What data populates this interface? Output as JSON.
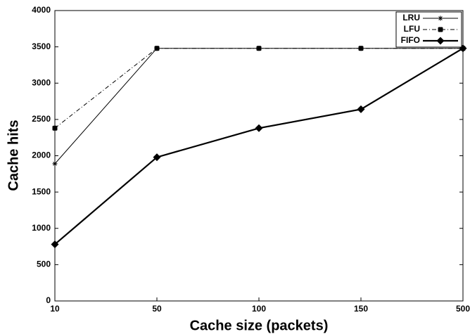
{
  "chart_data": {
    "type": "line",
    "x_label": "Cache size (packets)",
    "y_label": "Cache hits",
    "categories": [
      "10",
      "50",
      "100",
      "150",
      "500"
    ],
    "series": [
      {
        "name": "LRU",
        "color": "#000000",
        "dash": "solid",
        "marker": "asterisk",
        "values": [
          1890,
          3480,
          3480,
          3480,
          3480
        ]
      },
      {
        "name": "LFU",
        "color": "#000000",
        "dash": "dashdot",
        "marker": "square",
        "values": [
          2380,
          3480,
          3480,
          3480,
          3480
        ]
      },
      {
        "name": "FIFO",
        "color": "#000000",
        "dash": "solid-thick",
        "marker": "diamond",
        "values": [
          780,
          1980,
          2380,
          2640,
          3480
        ]
      }
    ],
    "ylim": [
      0,
      4000
    ],
    "yticks": [
      0,
      500,
      1000,
      1500,
      2000,
      2500,
      3000,
      3500,
      4000
    ],
    "grid": false,
    "legend": "top-right"
  }
}
